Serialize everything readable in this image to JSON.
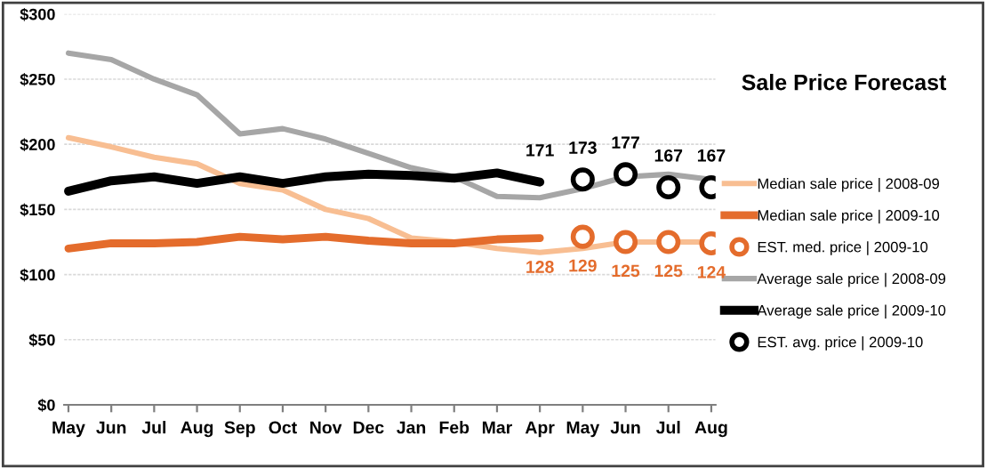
{
  "chart_data": {
    "type": "line",
    "title": "Sale Price Forecast",
    "categories": [
      "May",
      "Jun",
      "Jul",
      "Aug",
      "Sep",
      "Oct",
      "Nov",
      "Dec",
      "Jan",
      "Feb",
      "Mar",
      "Apr",
      "May",
      "Jun",
      "Jul",
      "Aug"
    ],
    "series": [
      {
        "name": "Median sale price | 2008-09",
        "color": "#f8be92",
        "values": [
          205,
          198,
          190,
          185,
          170,
          165,
          150,
          143,
          128,
          125,
          120,
          117,
          120,
          125,
          125,
          125
        ]
      },
      {
        "name": "Median sale price | 2009-10",
        "color": "#e46c2c",
        "values": [
          120,
          124,
          124,
          125,
          129,
          127,
          129,
          126,
          124,
          124,
          127,
          128,
          null,
          null,
          null,
          null
        ],
        "value_labels": [
          null,
          null,
          null,
          null,
          null,
          null,
          null,
          null,
          null,
          null,
          null,
          "128",
          null,
          null,
          null,
          null
        ]
      },
      {
        "name": "EST. med. price | 2009-10",
        "type": "scatter",
        "marker": "circle",
        "color": "#e46c2c",
        "values": [
          null,
          null,
          null,
          null,
          null,
          null,
          null,
          null,
          null,
          null,
          null,
          null,
          129,
          125,
          125,
          124
        ],
        "value_labels": [
          null,
          null,
          null,
          null,
          null,
          null,
          null,
          null,
          null,
          null,
          null,
          null,
          "129",
          "125",
          "125",
          "124"
        ]
      },
      {
        "name": "Average sale price | 2008-09",
        "color": "#a6a6a6",
        "values": [
          270,
          265,
          250,
          238,
          208,
          212,
          204,
          193,
          182,
          175,
          160,
          159,
          166,
          175,
          177,
          173
        ]
      },
      {
        "name": "Average sale price | 2009-10",
        "color": "#000000",
        "values": [
          164,
          172,
          175,
          170,
          175,
          170,
          175,
          177,
          176,
          174,
          178,
          171,
          null,
          null,
          null,
          null
        ],
        "value_labels": [
          null,
          null,
          null,
          null,
          null,
          null,
          null,
          null,
          null,
          null,
          null,
          "171",
          null,
          null,
          null,
          null
        ]
      },
      {
        "name": "EST. avg. price | 2009-10",
        "type": "scatter",
        "marker": "circle",
        "color": "#000000",
        "values": [
          null,
          null,
          null,
          null,
          null,
          null,
          null,
          null,
          null,
          null,
          null,
          null,
          173,
          177,
          167,
          167
        ],
        "value_labels": [
          null,
          null,
          null,
          null,
          null,
          null,
          null,
          null,
          null,
          null,
          null,
          null,
          "173",
          "177",
          "167",
          "167"
        ]
      }
    ],
    "ylim": [
      0,
      300
    ],
    "yticks": [
      {
        "value": 0,
        "label": "$0"
      },
      {
        "value": 50,
        "label": "$50"
      },
      {
        "value": 100,
        "label": "$100"
      },
      {
        "value": 150,
        "label": "$150"
      },
      {
        "value": 200,
        "label": "$200"
      },
      {
        "value": 250,
        "label": "$250"
      },
      {
        "value": 300,
        "label": "$300"
      }
    ],
    "grid": "y",
    "legend": "right"
  }
}
